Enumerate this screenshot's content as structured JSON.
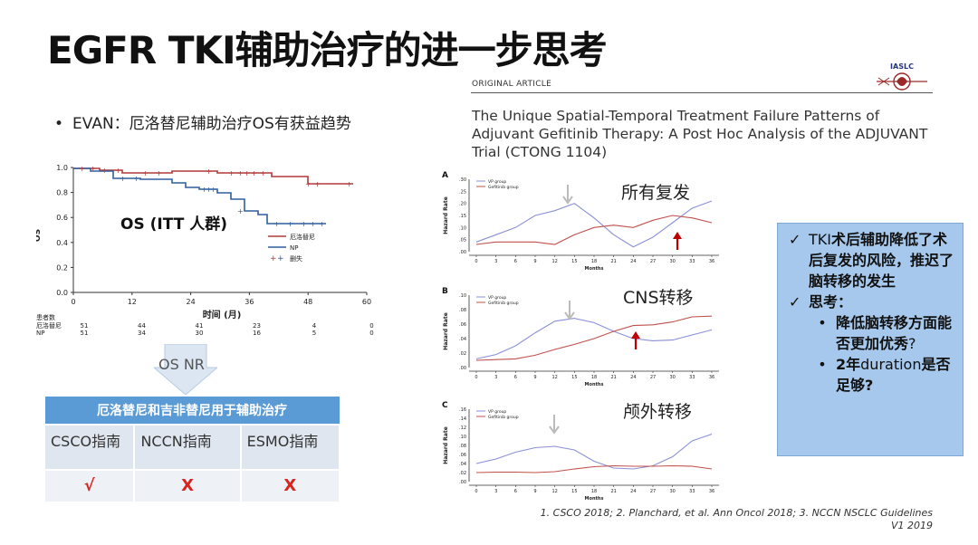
{
  "title": "EGFR TKI辅助治疗的进一步思考",
  "evan_bullet": "EVAN：厄洛替尼辅助治疗OS有获益趋势",
  "km_chart": {
    "overlay_label": "OS (ITT 人群)",
    "ylabel": "OS",
    "xlabel": "时间 (月)",
    "y_ticks": [
      "1.0",
      "0.8",
      "0.6",
      "0.4",
      "0.2",
      "0.0"
    ],
    "x_ticks": [
      "0",
      "12",
      "24",
      "36",
      "48",
      "60"
    ],
    "legend": [
      "厄洛替尼",
      "NP",
      "删失"
    ],
    "at_risk_header": "患者数",
    "at_risk_rows": [
      {
        "name": "厄洛替尼",
        "values": [
          "51",
          "44",
          "41",
          "23",
          "4",
          "0"
        ]
      },
      {
        "name": "NP",
        "values": [
          "51",
          "34",
          "30",
          "16",
          "5",
          "0"
        ]
      }
    ],
    "colors": {
      "erlotinib": "#b03a3a",
      "np": "#2e5f9e"
    }
  },
  "arrow_text": "OS NR",
  "table": {
    "header": "厄洛替尼和吉非替尼用于辅助治疗",
    "cols": [
      "CSCO指南",
      "NCCN指南",
      "ESMO指南"
    ],
    "marks": [
      "√",
      "X",
      "X"
    ]
  },
  "paper": {
    "label": "ORIGINAL ARTICLE",
    "title": "The Unique Spatial-Temporal Treatment Failure Patterns of Adjuvant Gefitinib Therapy: A Post Hoc Analysis of the ADJUVANT Trial (CTONG 1104)",
    "logo_text": "IASLC"
  },
  "hazard_panels": {
    "panel_letters": [
      "A",
      "B",
      "C"
    ],
    "titles": [
      "所有复发",
      "CNS转移",
      "颅外转移"
    ],
    "ylabel": "Hazard Rate",
    "xlabel": "Months",
    "x_ticks": [
      "0",
      "3",
      "6",
      "9",
      "12",
      "15",
      "18",
      "21",
      "24",
      "27",
      "30",
      "33",
      "36"
    ],
    "legend": [
      "VP group",
      "Gefitinib group"
    ],
    "y_ticks_A": [
      ".30",
      ".25",
      ".20",
      ".15",
      ".10",
      ".05",
      ".00"
    ],
    "y_ticks_B": [
      ".10",
      ".08",
      ".06",
      ".04",
      ".02",
      ".00"
    ],
    "y_ticks_C": [
      ".16",
      ".14",
      ".12",
      ".10",
      ".08",
      ".06",
      ".04",
      ".02",
      ".00"
    ],
    "colors": {
      "vp": "#8a8fd8",
      "gef": "#c0504d",
      "arrow": "#c00000",
      "down_arrow": "#bbbbbb"
    }
  },
  "chart_data": [
    {
      "type": "line",
      "title": "所有复发",
      "xlabel": "Months",
      "ylabel": "Hazard Rate",
      "x": [
        0,
        3,
        6,
        9,
        12,
        15,
        18,
        21,
        24,
        27,
        30,
        33,
        36
      ],
      "ylim": [
        0,
        0.3
      ],
      "series": [
        {
          "name": "VP group",
          "values": [
            0.04,
            0.07,
            0.1,
            0.15,
            0.17,
            0.2,
            0.14,
            0.07,
            0.02,
            0.06,
            0.12,
            0.18,
            0.21
          ]
        },
        {
          "name": "Gefitinib group",
          "values": [
            0.03,
            0.04,
            0.04,
            0.04,
            0.03,
            0.07,
            0.1,
            0.11,
            0.1,
            0.13,
            0.15,
            0.14,
            0.12
          ]
        }
      ]
    },
    {
      "type": "line",
      "title": "CNS转移",
      "xlabel": "Months",
      "ylabel": "Hazard Rate",
      "x": [
        0,
        3,
        6,
        9,
        12,
        15,
        18,
        21,
        24,
        27,
        30,
        33,
        36
      ],
      "ylim": [
        0,
        0.1
      ],
      "series": [
        {
          "name": "VP group",
          "values": [
            0.012,
            0.018,
            0.03,
            0.048,
            0.064,
            0.068,
            0.062,
            0.05,
            0.04,
            0.037,
            0.038,
            0.045,
            0.052
          ]
        },
        {
          "name": "Gefitinib group",
          "values": [
            0.01,
            0.011,
            0.012,
            0.017,
            0.025,
            0.032,
            0.04,
            0.05,
            0.058,
            0.059,
            0.063,
            0.07,
            0.071
          ]
        }
      ]
    },
    {
      "type": "line",
      "title": "颅外转移",
      "xlabel": "Months",
      "ylabel": "Hazard Rate",
      "x": [
        0,
        3,
        6,
        9,
        12,
        15,
        18,
        21,
        24,
        27,
        30,
        33,
        36
      ],
      "ylim": [
        0,
        0.16
      ],
      "series": [
        {
          "name": "VP group",
          "values": [
            0.04,
            0.05,
            0.065,
            0.075,
            0.078,
            0.07,
            0.045,
            0.03,
            0.028,
            0.035,
            0.055,
            0.09,
            0.105
          ]
        },
        {
          "name": "Gefitinib group",
          "values": [
            0.02,
            0.021,
            0.021,
            0.02,
            0.022,
            0.028,
            0.033,
            0.035,
            0.034,
            0.034,
            0.035,
            0.034,
            0.028
          ]
        }
      ]
    }
  ],
  "note_box": {
    "line1_prefix": "TKI",
    "line1_rest": "术后辅助降低了术后复发的风险，推迟了脑转移的发生",
    "line2": "思考：",
    "sub1": "降低脑转移方面能否更加优秀",
    "sub1_q": "?",
    "sub2_year": "2年",
    "sub2_duration": "duration",
    "sub2_rest": "是否足够?",
    "check": "✓",
    "bullet": "•"
  },
  "refs": {
    "line1": "1. CSCO 2018; 2. Planchard, et al. Ann Oncol 2018; 3. NCCN NSCLC Guidelines",
    "line2": "V1 2019"
  }
}
